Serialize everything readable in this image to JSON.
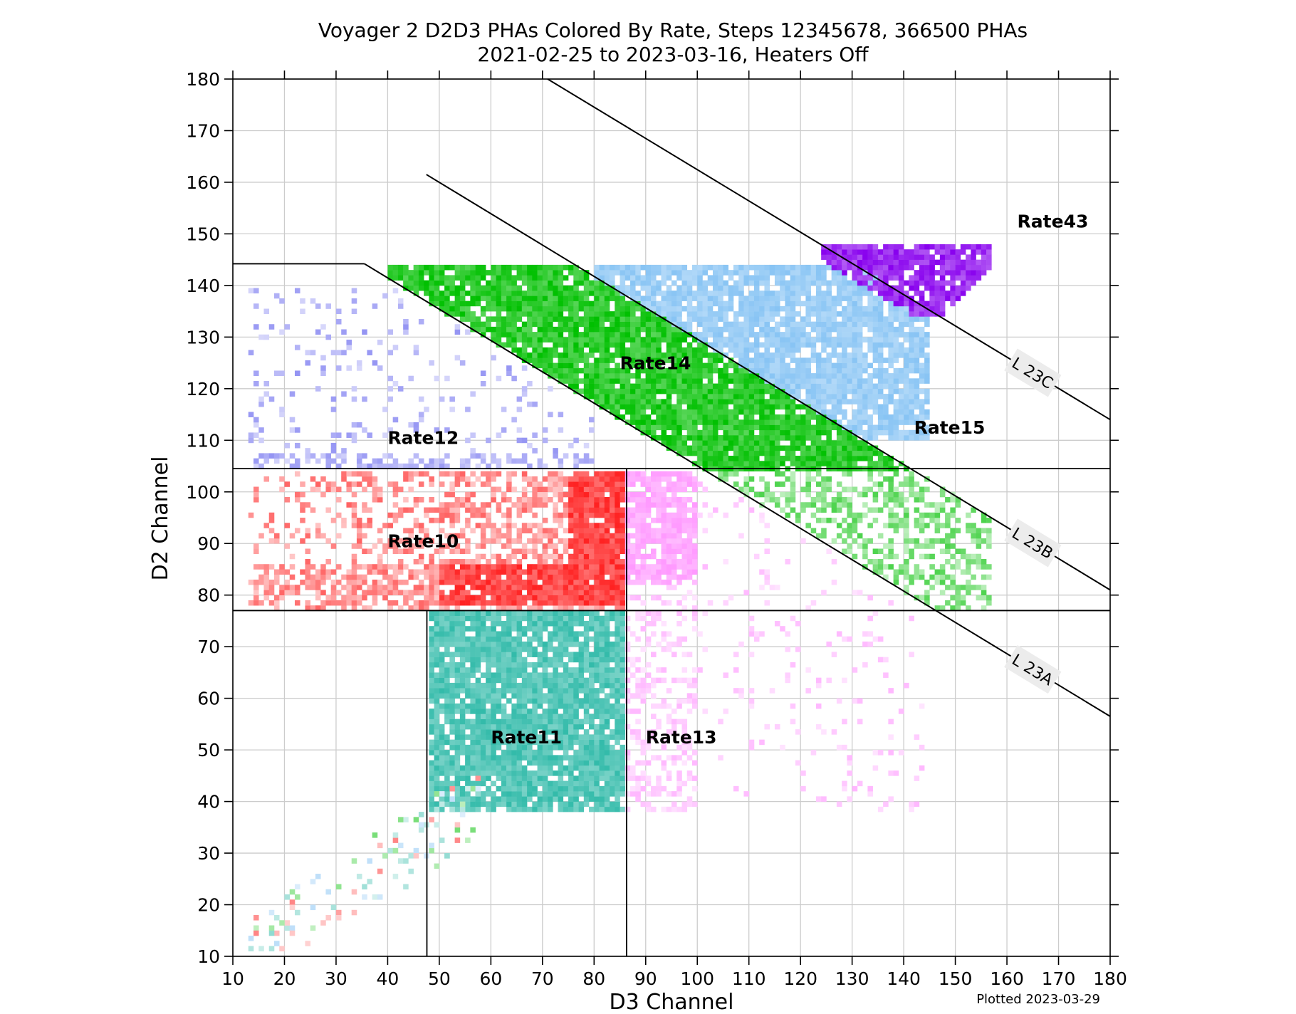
{
  "chart_data": {
    "type": "scatter",
    "title": "Voyager 2 D2D3 PHAs Colored By Rate, Steps 12345678, 366500 PHAs",
    "subtitle": "2021-02-25 to 2023-03-16, Heaters Off",
    "xlabel": "D3 Channel",
    "ylabel": "D2 Channel",
    "xlim": [
      10,
      180
    ],
    "ylim": [
      10,
      180
    ],
    "xticks": [
      10,
      20,
      30,
      40,
      50,
      60,
      70,
      80,
      90,
      100,
      110,
      120,
      130,
      140,
      150,
      160,
      170,
      180
    ],
    "yticks": [
      10,
      20,
      30,
      40,
      50,
      60,
      70,
      80,
      90,
      100,
      110,
      120,
      130,
      140,
      150,
      160,
      170,
      180
    ],
    "grid": true,
    "footnote": "Plotted 2023-03-29",
    "colors": {
      "Rate10": "#ff2020",
      "Rate11": "#33bbaa",
      "Rate12": "#6666ee",
      "Rate13": "#ff99ff",
      "Rate14": "#00c000",
      "Rate15": "#88c4f4",
      "Rate43": "#8800ee"
    },
    "region_labels": [
      {
        "text": "Rate43",
        "x": 162,
        "y": 152.5
      },
      {
        "text": "Rate14",
        "x": 85,
        "y": 125
      },
      {
        "text": "Rate15",
        "x": 142,
        "y": 112.5
      },
      {
        "text": "Rate12",
        "x": 40,
        "y": 110.5
      },
      {
        "text": "Rate10",
        "x": 40,
        "y": 90.5
      },
      {
        "text": "Rate11",
        "x": 60,
        "y": 52.5
      },
      {
        "text": "Rate13",
        "x": 90,
        "y": 52.5
      }
    ],
    "boundary_lines": [
      {
        "name": "L 23C",
        "points": [
          [
            71,
            180
          ],
          [
            180,
            114
          ]
        ]
      },
      {
        "name": "L 23B",
        "points": [
          [
            47.5,
            161.5
          ],
          [
            180,
            81
          ]
        ]
      },
      {
        "name": "L 23A",
        "points": [
          [
            35.5,
            144.2
          ],
          [
            180,
            56.5
          ]
        ]
      }
    ],
    "boundary_segments": [
      [
        [
          10,
          144.2
        ],
        [
          35.5,
          144.2
        ]
      ],
      [
        [
          10,
          104.5
        ],
        [
          180,
          104.5
        ]
      ],
      [
        [
          10,
          77
        ],
        [
          180,
          77
        ]
      ],
      [
        [
          86.3,
          10
        ],
        [
          86.3,
          104.5
        ]
      ],
      [
        [
          47.6,
          10
        ],
        [
          47.6,
          77
        ]
      ]
    ],
    "regions": [
      {
        "name": "Rate10",
        "d3": [
          13,
          86
        ],
        "d2": [
          77,
          104
        ],
        "density": "dense toward high D3 and near D2 80-85"
      },
      {
        "name": "Rate11",
        "d3": [
          48,
          86
        ],
        "d2": [
          38,
          77
        ],
        "density": "dense"
      },
      {
        "name": "Rate12",
        "d3": [
          13,
          80
        ],
        "d2": [
          104.5,
          140
        ],
        "density": "sparse"
      },
      {
        "name": "Rate13",
        "d3": [
          86,
          145
        ],
        "d2": [
          38,
          104
        ],
        "density": "dense near D3 88-100, D2 85-100; sparse elsewhere"
      },
      {
        "name": "Rate14",
        "d3": [
          40,
          157
        ],
        "d2": [
          77,
          144
        ],
        "density": "dense band between L 23A and L 23B"
      },
      {
        "name": "Rate15",
        "d3": [
          80,
          145
        ],
        "d2": [
          110,
          144
        ],
        "density": "dense between L 23B and L 23C"
      },
      {
        "name": "Rate43",
        "d3": [
          124,
          157
        ],
        "d2": [
          134,
          148
        ],
        "density": "dense above L 23C"
      }
    ]
  }
}
